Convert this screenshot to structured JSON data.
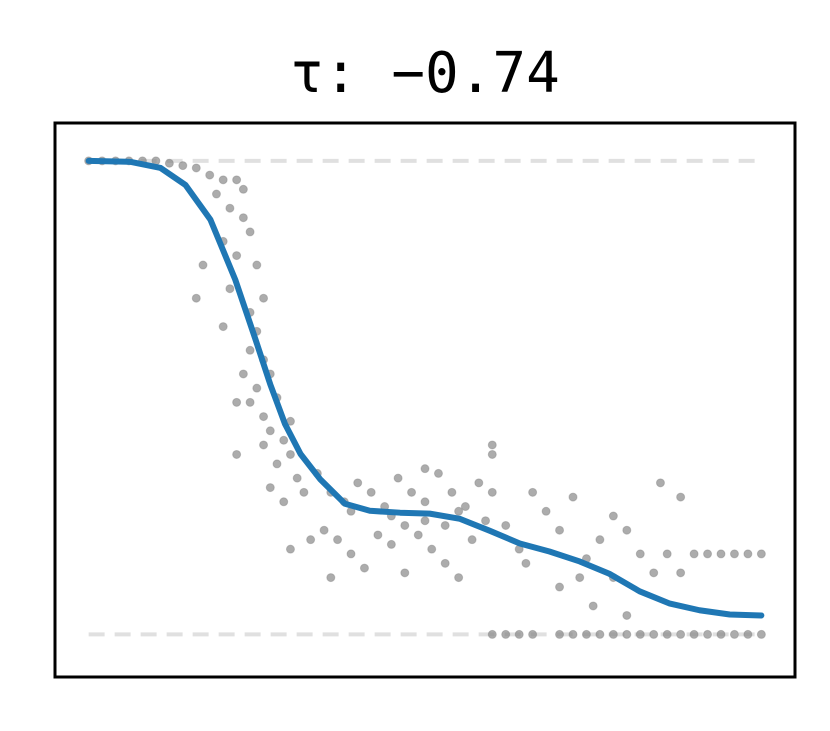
{
  "chart_data": {
    "type": "scatter",
    "title": "τ: −0.74",
    "xlim": [
      -0.05,
      1.05
    ],
    "ylim": [
      -0.09,
      1.08
    ],
    "hlines": [
      0,
      1
    ],
    "series": [
      {
        "type": "scatter",
        "color": "#808080",
        "x": [
          0,
          0.02,
          0.04,
          0.06,
          0.08,
          0.1,
          0.12,
          0.14,
          0.16,
          0.18,
          0.2,
          0.22,
          0.23,
          0.19,
          0.21,
          0.23,
          0.24,
          0.2,
          0.22,
          0.17,
          0.25,
          0.21,
          0.16,
          0.26,
          0.24,
          0.2,
          0.25,
          0.24,
          0.26,
          0.27,
          0.23,
          0.25,
          0.28,
          0.24,
          0.22,
          0.26,
          0.3,
          0.27,
          0.26,
          0.29,
          0.3,
          0.28,
          0.22,
          0.31,
          0.27,
          0.32,
          0.29,
          0.3,
          0.33,
          0.34,
          0.36,
          0.38,
          0.4,
          0.42,
          0.44,
          0.46,
          0.48,
          0.5,
          0.52,
          0.54,
          0.56,
          0.58,
          0.6,
          0.35,
          0.37,
          0.39,
          0.41,
          0.43,
          0.45,
          0.47,
          0.49,
          0.51,
          0.53,
          0.55,
          0.57,
          0.59,
          0.39,
          0.45,
          0.5,
          0.55,
          0.6,
          0.6,
          0.5,
          0.36,
          0.47,
          0.53,
          0.62,
          0.64,
          0.66,
          0.68,
          0.7,
          0.72,
          0.74,
          0.76,
          0.78,
          0.8,
          0.82,
          0.84,
          0.86,
          0.88,
          0.9,
          0.92,
          0.94,
          0.96,
          0.98,
          1,
          0.7,
          0.75,
          0.78,
          0.8,
          0.85,
          0.88,
          0.65,
          0.73,
          0.6,
          0.62,
          0.64,
          0.66,
          0.7,
          0.72,
          0.74,
          0.76,
          0.78,
          0.8,
          0.82,
          0.84,
          0.86,
          0.88,
          0.9,
          0.92,
          0.94,
          0.96,
          0.98,
          1
        ],
        "values": [
          1,
          1,
          1,
          1,
          1,
          1,
          0.995,
          0.99,
          0.985,
          0.97,
          0.96,
          0.96,
          0.94,
          0.93,
          0.9,
          0.88,
          0.85,
          0.83,
          0.8,
          0.78,
          0.78,
          0.73,
          0.71,
          0.71,
          0.68,
          0.65,
          0.64,
          0.6,
          0.58,
          0.55,
          0.55,
          0.52,
          0.5,
          0.49,
          0.49,
          0.46,
          0.45,
          0.43,
          0.4,
          0.41,
          0.38,
          0.36,
          0.38,
          0.33,
          0.31,
          0.3,
          0.28,
          0.18,
          0.2,
          0.34,
          0.3,
          0.28,
          0.32,
          0.3,
          0.27,
          0.33,
          0.3,
          0.28,
          0.34,
          0.3,
          0.27,
          0.32,
          0.3,
          0.22,
          0.2,
          0.17,
          0.14,
          0.21,
          0.19,
          0.23,
          0.21,
          0.18,
          0.23,
          0.12,
          0.2,
          0.24,
          0.26,
          0.25,
          0.24,
          0.26,
          0.38,
          0.4,
          0.35,
          0.12,
          0.13,
          0.15,
          0.23,
          0.18,
          0.3,
          0.26,
          0.22,
          0.29,
          0.16,
          0.2,
          0.25,
          0.22,
          0.17,
          0.13,
          0.17,
          0.13,
          0.17,
          0.17,
          0.17,
          0.17,
          0.17,
          0.17,
          0.1,
          0.06,
          0.12,
          0.04,
          0.32,
          0.29,
          0.15,
          0.12,
          0,
          0,
          0,
          0,
          0,
          0,
          0,
          0,
          0,
          0,
          0,
          0,
          0,
          0,
          0,
          0,
          0,
          0,
          0,
          0
        ]
      },
      {
        "type": "line",
        "color": "#1f77b4",
        "x": [
          0,
          0.062,
          0.107,
          0.144,
          0.181,
          0.218,
          0.248,
          0.27,
          0.292,
          0.315,
          0.344,
          0.381,
          0.418,
          0.463,
          0.507,
          0.552,
          0.596,
          0.641,
          0.685,
          0.73,
          0.774,
          0.819,
          0.864,
          0.908,
          0.953,
          1
        ],
        "values": [
          1,
          0.998,
          0.985,
          0.949,
          0.876,
          0.749,
          0.623,
          0.528,
          0.444,
          0.381,
          0.328,
          0.276,
          0.261,
          0.257,
          0.255,
          0.244,
          0.219,
          0.192,
          0.175,
          0.154,
          0.128,
          0.091,
          0.065,
          0.051,
          0.042,
          0.04
        ]
      }
    ]
  }
}
